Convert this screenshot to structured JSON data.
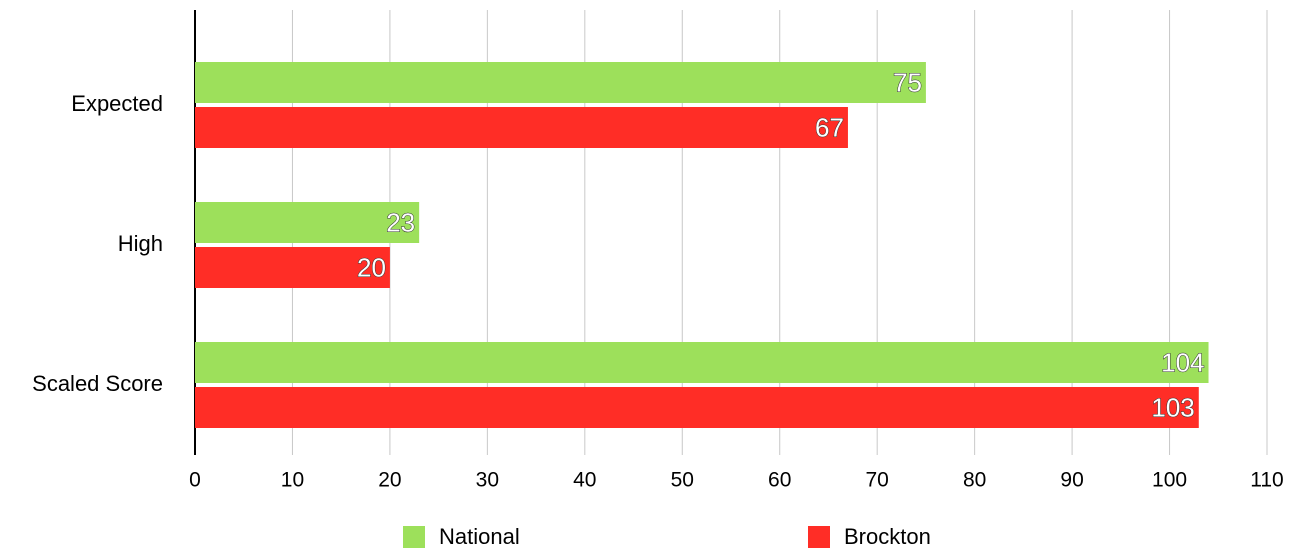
{
  "chart_data": {
    "type": "bar",
    "orientation": "horizontal",
    "categories": [
      "Expected",
      "High",
      "Scaled Score"
    ],
    "series": [
      {
        "name": "National",
        "color": "#9de05b",
        "values": [
          75,
          23,
          104
        ]
      },
      {
        "name": "Brockton",
        "color": "#ff2d26",
        "values": [
          67,
          20,
          103
        ]
      }
    ],
    "xlim": [
      0,
      110
    ],
    "xticks": [
      0,
      10,
      20,
      30,
      40,
      50,
      60,
      70,
      80,
      90,
      100,
      110
    ],
    "grid": true,
    "legend": "bottom"
  }
}
